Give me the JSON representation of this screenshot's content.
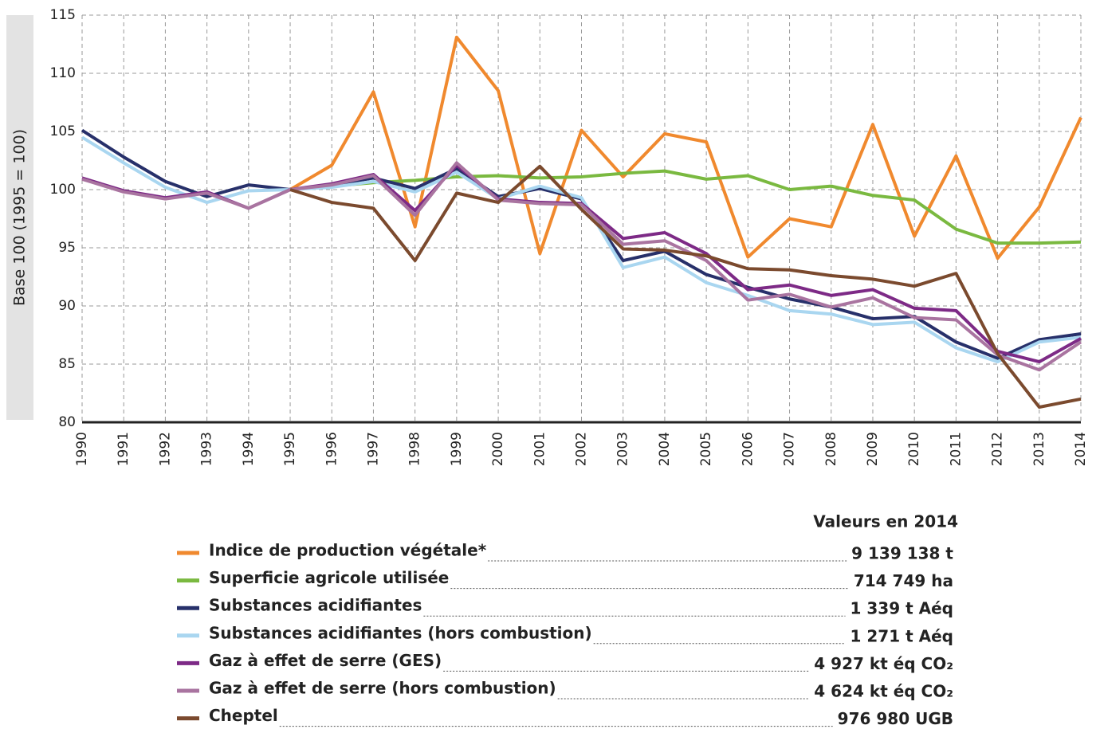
{
  "chart_data": {
    "type": "line",
    "y_label": "Base 100 (1995 = 100)",
    "x": [
      1990,
      1991,
      1992,
      1993,
      1994,
      1995,
      1996,
      1997,
      1998,
      1999,
      2000,
      2001,
      2002,
      2003,
      2004,
      2005,
      2006,
      2007,
      2008,
      2009,
      2010,
      2011,
      2012,
      2013,
      2014
    ],
    "xlim": [
      1990,
      2014
    ],
    "xticks": [
      1990,
      1991,
      1992,
      1993,
      1994,
      1995,
      1996,
      1997,
      1998,
      1999,
      2000,
      2001,
      2002,
      2003,
      2004,
      2005,
      2006,
      2007,
      2008,
      2009,
      2010,
      2011,
      2012,
      2013,
      2014
    ],
    "ylim": [
      80,
      115
    ],
    "yticks": [
      80,
      85,
      90,
      95,
      100,
      105,
      110,
      115
    ],
    "grid": true,
    "legend_title": "Valeurs en 2014",
    "series": [
      {
        "name": "Indice de production végétale*",
        "color": "#f0892e",
        "value_2014": "9 139 138 t",
        "values": [
          null,
          null,
          null,
          null,
          null,
          100.0,
          102.1,
          108.4,
          96.8,
          113.1,
          108.5,
          94.5,
          105.1,
          101.1,
          104.8,
          104.1,
          94.2,
          97.5,
          96.8,
          105.6,
          96.0,
          102.9,
          94.1,
          98.5,
          106.2
        ]
      },
      {
        "name": "Superficie agricole utilisée",
        "color": "#7ab940",
        "value_2014": "714 749 ha",
        "values": [
          null,
          null,
          null,
          null,
          null,
          100.0,
          100.3,
          100.6,
          100.8,
          101.1,
          101.2,
          101.0,
          101.1,
          101.4,
          101.6,
          100.9,
          101.2,
          100.0,
          100.3,
          99.5,
          99.1,
          96.6,
          95.4,
          95.4,
          95.5
        ]
      },
      {
        "name": "Substances acidifiantes",
        "color": "#27306a",
        "value_2014": "1 339 t Aéq",
        "values": [
          105.1,
          102.8,
          100.7,
          99.4,
          100.4,
          100.0,
          100.4,
          101.0,
          100.1,
          101.8,
          99.4,
          100.1,
          99.2,
          93.9,
          94.7,
          92.7,
          91.6,
          90.6,
          89.9,
          88.9,
          89.1,
          86.9,
          85.5,
          87.1,
          87.6
        ]
      },
      {
        "name": "Substances acidifiantes (hors combustion)",
        "color": "#a9d6f0",
        "value_2014": "1 271 t Aéq",
        "values": [
          104.5,
          102.3,
          100.2,
          98.9,
          99.9,
          100.0,
          100.2,
          100.7,
          99.8,
          101.5,
          99.2,
          100.3,
          99.3,
          93.3,
          94.2,
          92.0,
          90.9,
          89.6,
          89.3,
          88.4,
          88.6,
          86.4,
          85.2,
          86.9,
          87.3
        ]
      },
      {
        "name": "Gaz à effet de serre (GES)",
        "color": "#7d2a86",
        "value_2014": "4 927 kt éq CO₂",
        "values": [
          101.0,
          99.9,
          99.3,
          99.8,
          98.4,
          100.0,
          100.5,
          101.3,
          98.2,
          102.1,
          99.2,
          98.9,
          98.8,
          95.8,
          96.3,
          94.5,
          91.4,
          91.8,
          90.9,
          91.4,
          89.8,
          89.6,
          86.1,
          85.2,
          87.2
        ]
      },
      {
        "name": "Gaz à effet de serre (hors combustion)",
        "color": "#a974a0",
        "value_2014": "4 624 kt éq CO₂",
        "values": [
          100.9,
          99.8,
          99.2,
          99.7,
          98.4,
          100.0,
          100.4,
          101.2,
          97.8,
          102.3,
          99.1,
          98.8,
          98.7,
          95.3,
          95.6,
          93.9,
          90.5,
          91.0,
          89.9,
          90.7,
          89.0,
          88.8,
          85.8,
          84.5,
          86.9
        ]
      },
      {
        "name": "Cheptel",
        "color": "#7b4a2e",
        "value_2014": "976 980 UGB",
        "values": [
          null,
          null,
          null,
          null,
          null,
          100.0,
          98.9,
          98.4,
          93.9,
          99.7,
          98.9,
          102.0,
          98.3,
          94.9,
          94.8,
          94.3,
          93.2,
          93.1,
          92.6,
          92.3,
          91.7,
          92.8,
          85.9,
          81.3,
          82.0
        ]
      }
    ]
  }
}
